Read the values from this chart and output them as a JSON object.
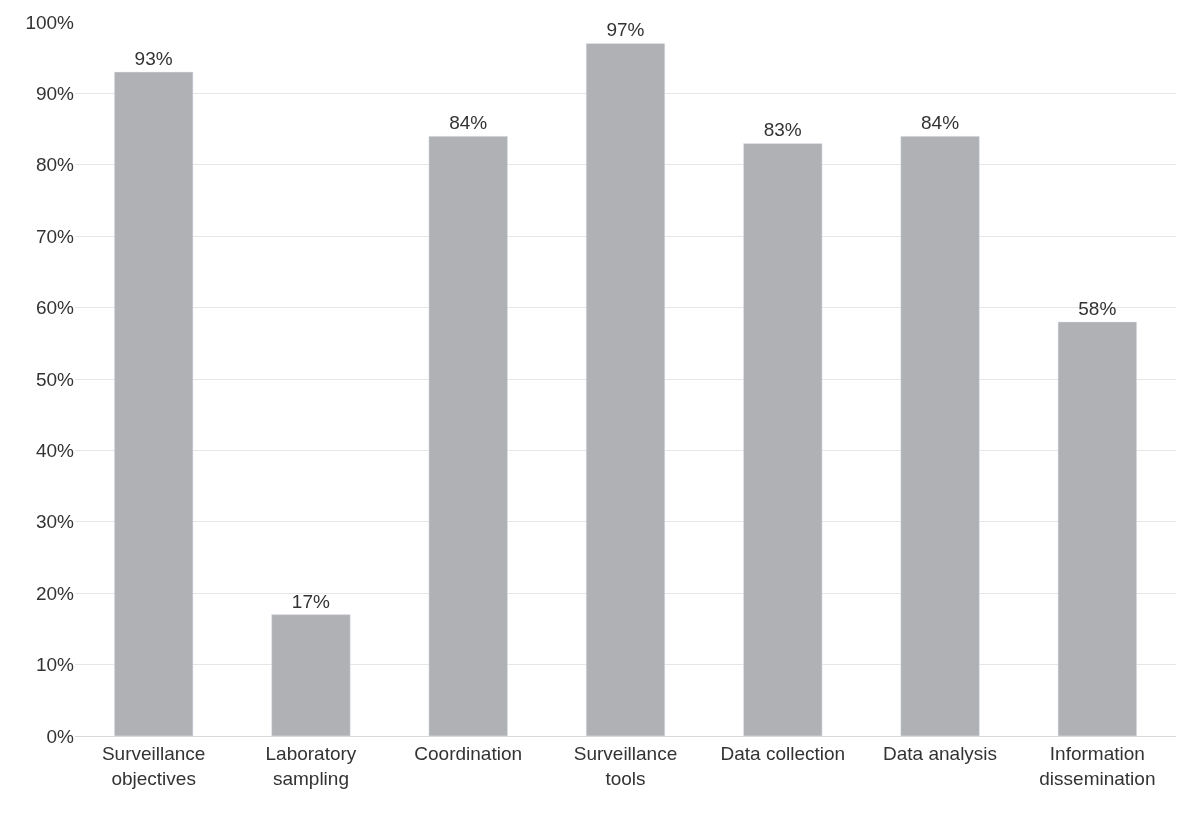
{
  "chart_data": {
    "type": "bar",
    "categories": [
      "Surveillance\nobjectives",
      "Laboratory\nsampling",
      "Coordination",
      "Surveillance\ntools",
      "Data collection",
      "Data analysis",
      "Information\ndissemination"
    ],
    "values": [
      93,
      17,
      84,
      97,
      83,
      84,
      58
    ],
    "value_labels": [
      "93%",
      "17%",
      "84%",
      "97%",
      "83%",
      "84%",
      "58%"
    ],
    "color": "#b0b1b5",
    "ylim": [
      0,
      100
    ],
    "yticks": [
      {
        "value": 0,
        "label": "0%"
      },
      {
        "value": 10,
        "label": "10%"
      },
      {
        "value": 20,
        "label": "20%"
      },
      {
        "value": 30,
        "label": "30%"
      },
      {
        "value": 40,
        "label": "40%"
      },
      {
        "value": 50,
        "label": "50%"
      },
      {
        "value": 60,
        "label": "60%"
      },
      {
        "value": 70,
        "label": "70%"
      },
      {
        "value": 80,
        "label": "80%"
      },
      {
        "value": 90,
        "label": "90%"
      },
      {
        "value": 100,
        "label": "100%"
      }
    ],
    "grid": "y"
  }
}
